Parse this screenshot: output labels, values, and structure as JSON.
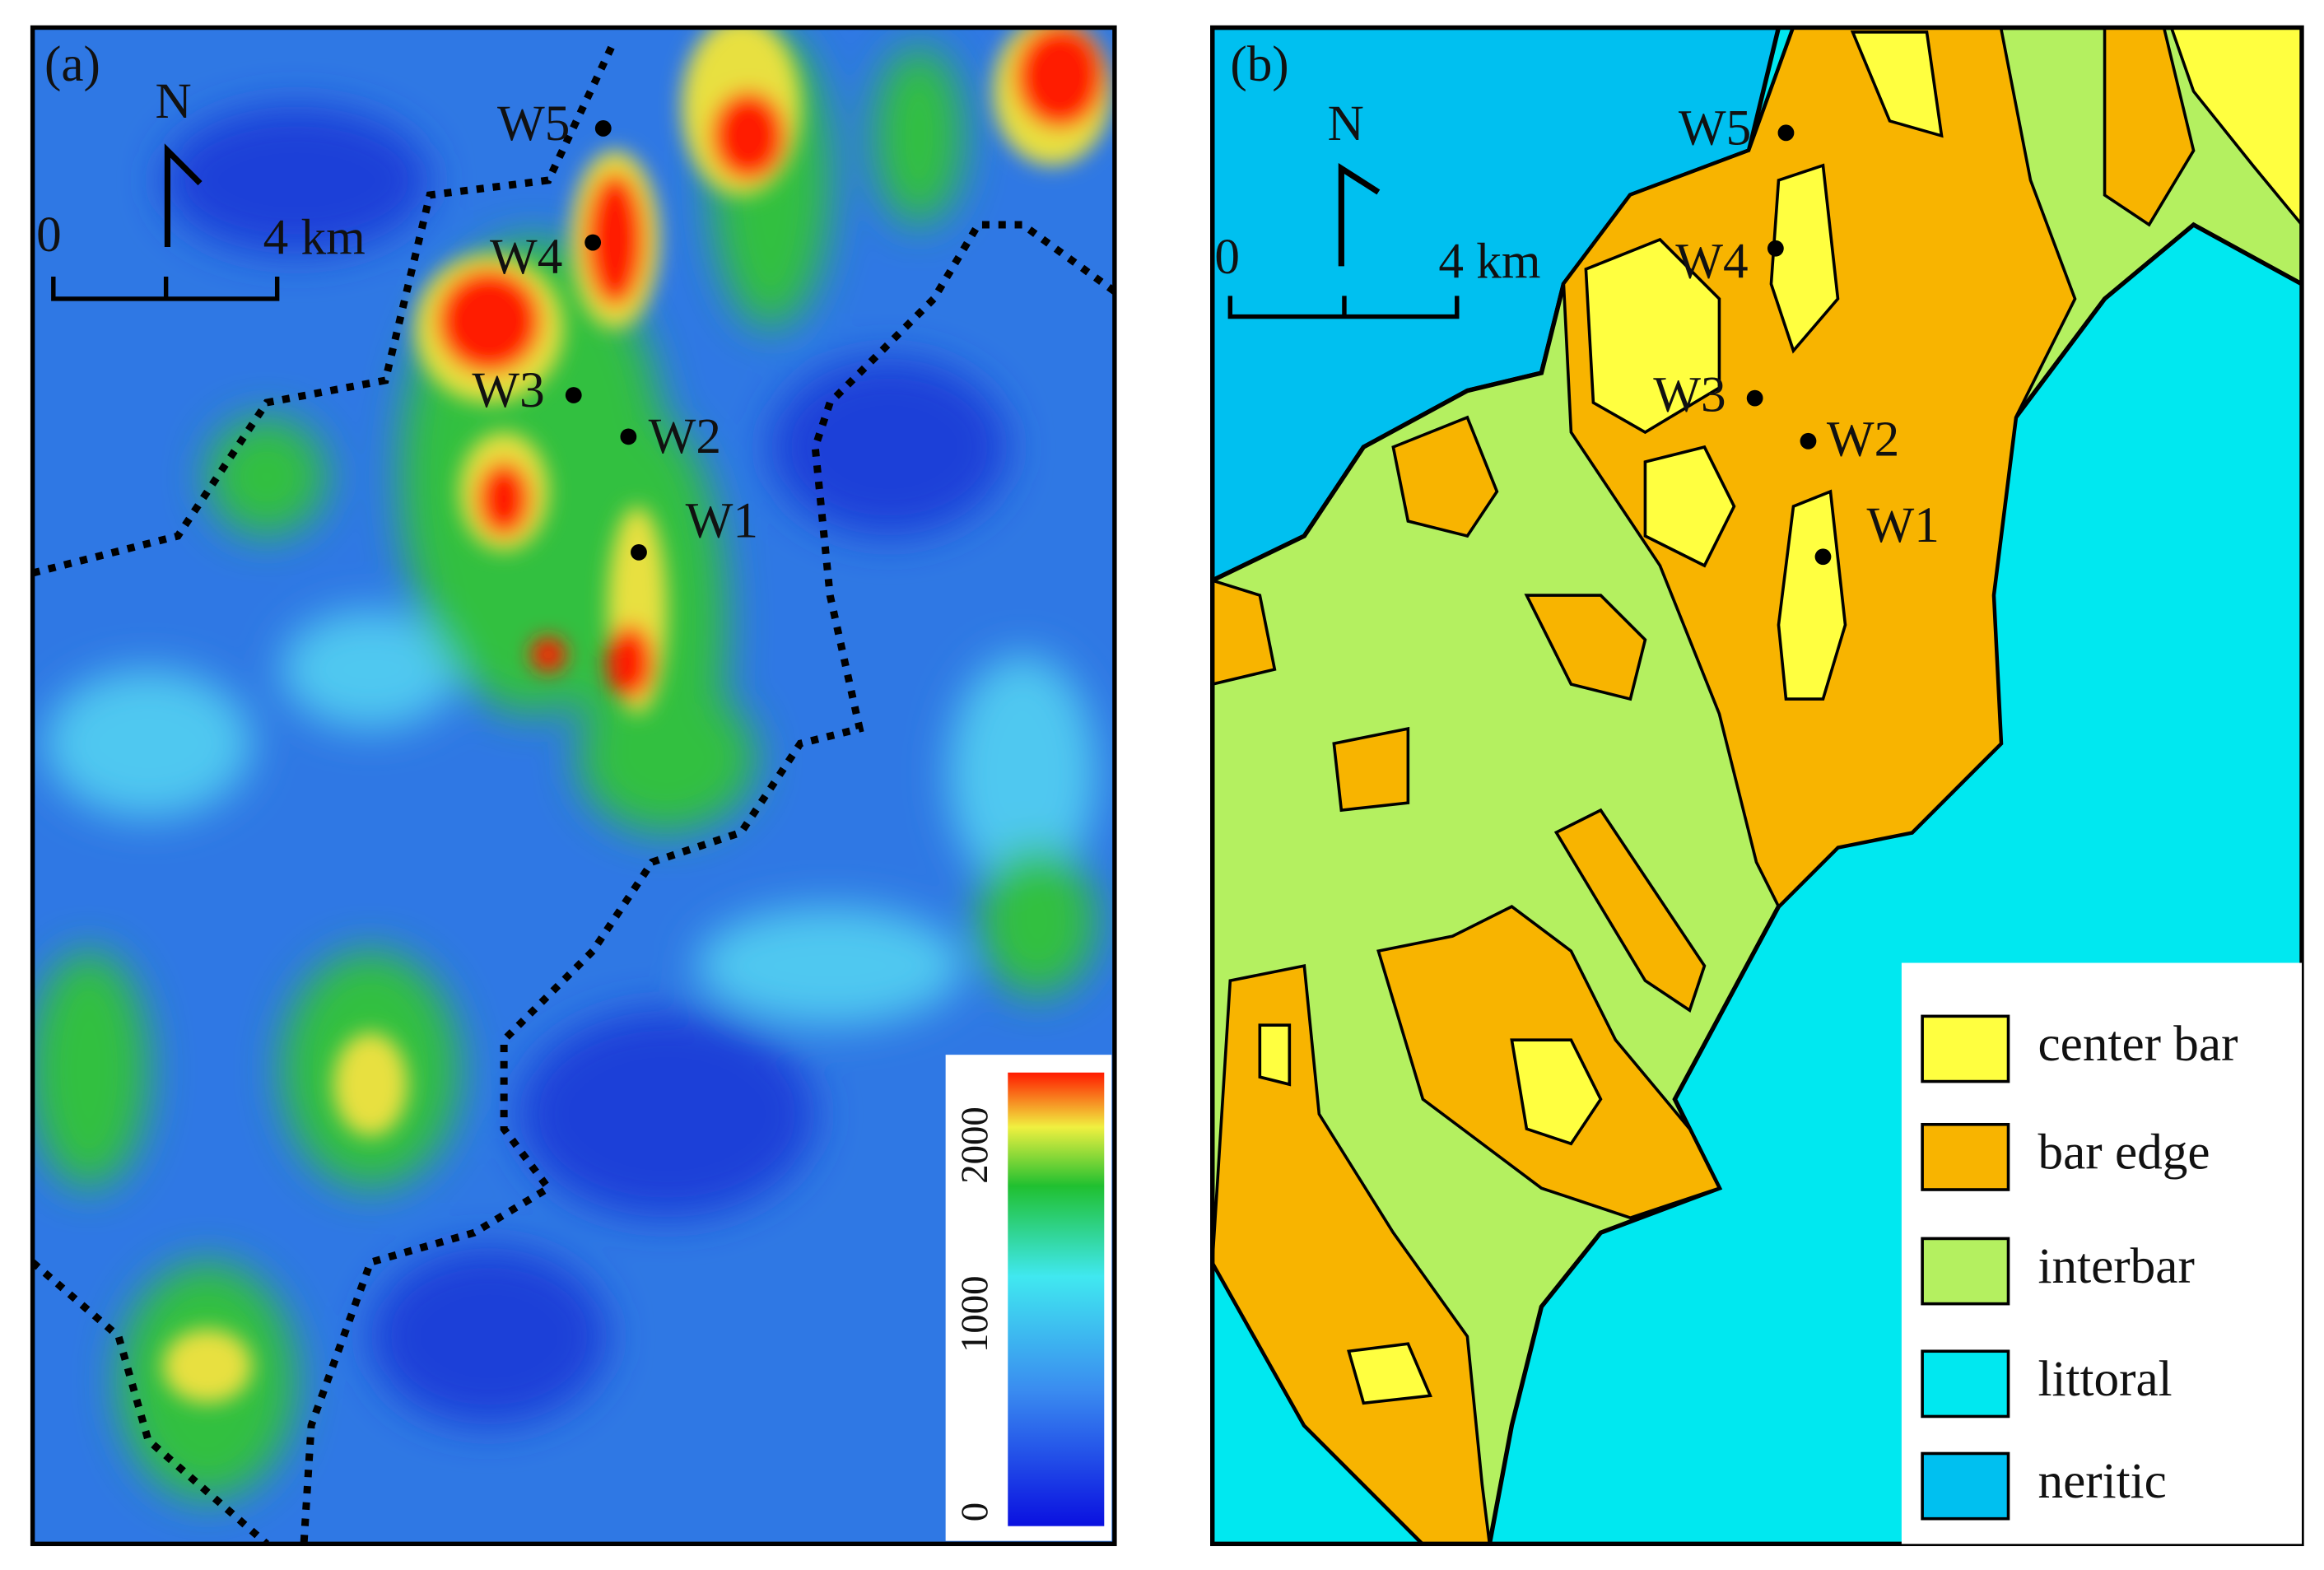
{
  "panel_a": {
    "label": "(a)",
    "north": "N",
    "scale": {
      "start": "0",
      "end": "4 km"
    },
    "wells": [
      "W5",
      "W4",
      "W3",
      "W2",
      "W1"
    ],
    "colorbar": {
      "ticks": [
        0,
        1000,
        2000
      ]
    }
  },
  "panel_b": {
    "label": "(b)",
    "north": "N",
    "scale": {
      "start": "0",
      "end": "4 km"
    },
    "wells": [
      "W5",
      "W4",
      "W3",
      "W2",
      "W1"
    ],
    "legend": [
      {
        "label": "center bar",
        "color": "#ffff40"
      },
      {
        "label": "bar edge",
        "color": "#f8b400"
      },
      {
        "label": "interbar",
        "color": "#b4f060"
      },
      {
        "label": "littoral",
        "color": "#00e8f0"
      },
      {
        "label": "neritic",
        "color": "#00c0f0"
      }
    ]
  }
}
